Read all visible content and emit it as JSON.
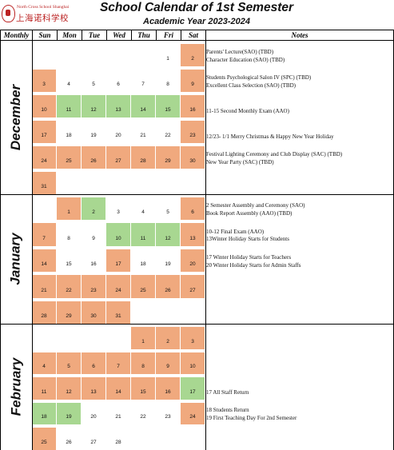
{
  "school": {
    "logo_en": "North Cross School Shanghai",
    "logo_cn": "上海诺科学校"
  },
  "title": "School Calendar of 1st Semester",
  "subtitle": "Academic Year 2023-2024",
  "columns": [
    "Monthly",
    "Sun",
    "Mon",
    "Tue",
    "Wed",
    "Thu",
    "Fri",
    "Sat",
    "Notes"
  ],
  "colors": {
    "holiday": "#f0a97e",
    "event": "#a8d791",
    "normal": "#ffffff"
  },
  "months": [
    {
      "name": "December",
      "weeks": [
        {
          "days": [
            {
              "d": "",
              "c": "n"
            },
            {
              "d": "",
              "c": "n"
            },
            {
              "d": "",
              "c": "n"
            },
            {
              "d": "",
              "c": "n"
            },
            {
              "d": "",
              "c": "n"
            },
            {
              "d": "1",
              "c": "n"
            },
            {
              "d": "2",
              "c": "o"
            }
          ],
          "notes": [
            "Parents' Lecture(SAO) (TBD)",
            "Character Education  (SAO) (TBD)"
          ]
        },
        {
          "days": [
            {
              "d": "3",
              "c": "o"
            },
            {
              "d": "4",
              "c": "n"
            },
            {
              "d": "5",
              "c": "n"
            },
            {
              "d": "6",
              "c": "n"
            },
            {
              "d": "7",
              "c": "n"
            },
            {
              "d": "8",
              "c": "n"
            },
            {
              "d": "9",
              "c": "o"
            }
          ],
          "notes": [
            "Students Psychological Salon IV (SPC) (TBD)",
            "Excellent Class Selection (SAO) (TBD)"
          ]
        },
        {
          "days": [
            {
              "d": "10",
              "c": "o"
            },
            {
              "d": "11",
              "c": "g"
            },
            {
              "d": "12",
              "c": "g"
            },
            {
              "d": "13",
              "c": "g"
            },
            {
              "d": "14",
              "c": "g"
            },
            {
              "d": "15",
              "c": "g"
            },
            {
              "d": "16",
              "c": "o"
            }
          ],
          "notes": [
            "11-15 Second Monthly Exam (AAO)"
          ]
        },
        {
          "days": [
            {
              "d": "17",
              "c": "o"
            },
            {
              "d": "18",
              "c": "n"
            },
            {
              "d": "19",
              "c": "n"
            },
            {
              "d": "20",
              "c": "n"
            },
            {
              "d": "21",
              "c": "n"
            },
            {
              "d": "22",
              "c": "n"
            },
            {
              "d": "23",
              "c": "o"
            }
          ],
          "notes": [
            "12/23- 1/1 Merry Christmas & Happy New Year Holiday"
          ]
        },
        {
          "days": [
            {
              "d": "24",
              "c": "o"
            },
            {
              "d": "25",
              "c": "o"
            },
            {
              "d": "26",
              "c": "o"
            },
            {
              "d": "27",
              "c": "o"
            },
            {
              "d": "28",
              "c": "o"
            },
            {
              "d": "29",
              "c": "o"
            },
            {
              "d": "30",
              "c": "o"
            }
          ],
          "notes": [
            "Festival Lighting Ceremony and Club Display (SAC) (TBD)",
            "New Year Party (SAC) (TBD)"
          ]
        },
        {
          "days": [
            {
              "d": "31",
              "c": "o"
            },
            {
              "d": "",
              "c": "n"
            },
            {
              "d": "",
              "c": "n"
            },
            {
              "d": "",
              "c": "n"
            },
            {
              "d": "",
              "c": "n"
            },
            {
              "d": "",
              "c": "n"
            },
            {
              "d": "",
              "c": "n"
            }
          ],
          "notes": []
        }
      ]
    },
    {
      "name": "January",
      "weeks": [
        {
          "days": [
            {
              "d": "",
              "c": "n"
            },
            {
              "d": "1",
              "c": "o"
            },
            {
              "d": "2",
              "c": "g"
            },
            {
              "d": "3",
              "c": "n"
            },
            {
              "d": "4",
              "c": "n"
            },
            {
              "d": "5",
              "c": "n"
            },
            {
              "d": "6",
              "c": "o"
            }
          ],
          "notes": [
            "2 Semester Assembly and Ceremony (SAO)",
            "Book Report Assembly (AAO) (TBD)"
          ]
        },
        {
          "days": [
            {
              "d": "7",
              "c": "o"
            },
            {
              "d": "8",
              "c": "n"
            },
            {
              "d": "9",
              "c": "n"
            },
            {
              "d": "10",
              "c": "g"
            },
            {
              "d": "11",
              "c": "g"
            },
            {
              "d": "12",
              "c": "g"
            },
            {
              "d": "13",
              "c": "o"
            }
          ],
          "notes": [
            "10-12 Final Exam (AAO)",
            "13Winter Holiday Starts for Students"
          ]
        },
        {
          "days": [
            {
              "d": "14",
              "c": "o"
            },
            {
              "d": "15",
              "c": "n"
            },
            {
              "d": "16",
              "c": "n"
            },
            {
              "d": "17",
              "c": "o"
            },
            {
              "d": "18",
              "c": "n"
            },
            {
              "d": "19",
              "c": "n"
            },
            {
              "d": "20",
              "c": "o"
            }
          ],
          "notes": [
            "17 Winter Holiday Starts for Teachers",
            "20 Winter Holiday Starts for Admin Staffs"
          ]
        },
        {
          "days": [
            {
              "d": "21",
              "c": "o"
            },
            {
              "d": "22",
              "c": "o"
            },
            {
              "d": "23",
              "c": "o"
            },
            {
              "d": "24",
              "c": "o"
            },
            {
              "d": "25",
              "c": "o"
            },
            {
              "d": "26",
              "c": "o"
            },
            {
              "d": "27",
              "c": "o"
            }
          ],
          "notes": []
        },
        {
          "days": [
            {
              "d": "28",
              "c": "o"
            },
            {
              "d": "29",
              "c": "o"
            },
            {
              "d": "30",
              "c": "o"
            },
            {
              "d": "31",
              "c": "o"
            },
            {
              "d": "",
              "c": "n"
            },
            {
              "d": "",
              "c": "n"
            },
            {
              "d": "",
              "c": "n"
            }
          ],
          "notes": []
        }
      ]
    },
    {
      "name": "February",
      "weeks": [
        {
          "days": [
            {
              "d": "",
              "c": "n"
            },
            {
              "d": "",
              "c": "n"
            },
            {
              "d": "",
              "c": "n"
            },
            {
              "d": "",
              "c": "n"
            },
            {
              "d": "1",
              "c": "o"
            },
            {
              "d": "2",
              "c": "o"
            },
            {
              "d": "3",
              "c": "o"
            }
          ],
          "notes": []
        },
        {
          "days": [
            {
              "d": "4",
              "c": "o"
            },
            {
              "d": "5",
              "c": "o"
            },
            {
              "d": "6",
              "c": "o"
            },
            {
              "d": "7",
              "c": "o"
            },
            {
              "d": "8",
              "c": "o"
            },
            {
              "d": "9",
              "c": "o"
            },
            {
              "d": "10",
              "c": "o"
            }
          ],
          "notes": []
        },
        {
          "days": [
            {
              "d": "11",
              "c": "o"
            },
            {
              "d": "12",
              "c": "o"
            },
            {
              "d": "13",
              "c": "o"
            },
            {
              "d": "14",
              "c": "o"
            },
            {
              "d": "15",
              "c": "o"
            },
            {
              "d": "16",
              "c": "o"
            },
            {
              "d": "17",
              "c": "g"
            }
          ],
          "notes": [
            "17 All Staff Return"
          ]
        },
        {
          "days": [
            {
              "d": "18",
              "c": "g"
            },
            {
              "d": "19",
              "c": "g"
            },
            {
              "d": "20",
              "c": "n"
            },
            {
              "d": "21",
              "c": "n"
            },
            {
              "d": "22",
              "c": "n"
            },
            {
              "d": "23",
              "c": "n"
            },
            {
              "d": "24",
              "c": "o"
            }
          ],
          "notes": [
            "18 Students Return",
            "19 First Teaching Day For 2nd Semester"
          ]
        },
        {
          "days": [
            {
              "d": "25",
              "c": "o"
            },
            {
              "d": "26",
              "c": "n"
            },
            {
              "d": "27",
              "c": "n"
            },
            {
              "d": "28",
              "c": "n"
            },
            {
              "d": "",
              "c": "n"
            },
            {
              "d": "",
              "c": "n"
            },
            {
              "d": "",
              "c": "n"
            }
          ],
          "notes": []
        }
      ]
    }
  ]
}
